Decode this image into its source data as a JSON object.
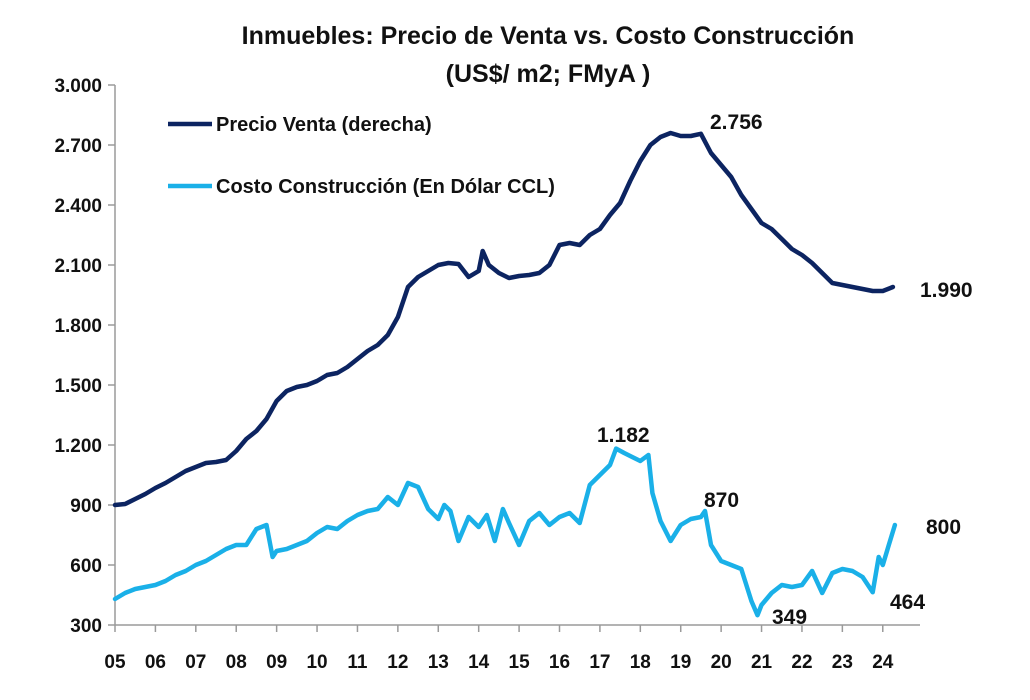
{
  "chart_data": {
    "type": "line",
    "title": "Inmuebles: Precio de Venta vs. Costo Construcción",
    "subtitle": "(US$/ m2; FMyA )",
    "xlabel": "",
    "ylabel": "",
    "ylim": [
      300,
      3000
    ],
    "yticks": [
      {
        "value": 300,
        "label": "300"
      },
      {
        "value": 600,
        "label": "600"
      },
      {
        "value": 900,
        "label": "900"
      },
      {
        "value": 1200,
        "label": "1.200"
      },
      {
        "value": 1500,
        "label": "1.500"
      },
      {
        "value": 1800,
        "label": "1.800"
      },
      {
        "value": 2100,
        "label": "2.100"
      },
      {
        "value": 2400,
        "label": "2.400"
      },
      {
        "value": 2700,
        "label": "2.700"
      },
      {
        "value": 3000,
        "label": "3.000"
      }
    ],
    "xlim": [
      2005,
      2024.55
    ],
    "xticks": [
      {
        "value": 2005,
        "label": "05"
      },
      {
        "value": 2006,
        "label": "06"
      },
      {
        "value": 2007,
        "label": "07"
      },
      {
        "value": 2008,
        "label": "08"
      },
      {
        "value": 2009,
        "label": "09"
      },
      {
        "value": 2010,
        "label": "10"
      },
      {
        "value": 2011,
        "label": "11"
      },
      {
        "value": 2012,
        "label": "12"
      },
      {
        "value": 2013,
        "label": "13"
      },
      {
        "value": 2014,
        "label": "14"
      },
      {
        "value": 2015,
        "label": "15"
      },
      {
        "value": 2016,
        "label": "16"
      },
      {
        "value": 2017,
        "label": "17"
      },
      {
        "value": 2018,
        "label": "18"
      },
      {
        "value": 2019,
        "label": "19"
      },
      {
        "value": 2020,
        "label": "20"
      },
      {
        "value": 2021,
        "label": "21"
      },
      {
        "value": 2022,
        "label": "22"
      },
      {
        "value": 2023,
        "label": "23"
      },
      {
        "value": 2024,
        "label": "24"
      }
    ],
    "grid": false,
    "legend_position": "top-left",
    "series": [
      {
        "name": "Precio Venta (derecha)",
        "color": "#0c2461",
        "points": [
          [
            2005.0,
            900
          ],
          [
            2005.25,
            905
          ],
          [
            2005.5,
            930
          ],
          [
            2005.75,
            955
          ],
          [
            2006.0,
            985
          ],
          [
            2006.25,
            1010
          ],
          [
            2006.5,
            1040
          ],
          [
            2006.75,
            1070
          ],
          [
            2007.0,
            1090
          ],
          [
            2007.25,
            1110
          ],
          [
            2007.5,
            1115
          ],
          [
            2007.75,
            1125
          ],
          [
            2008.0,
            1170
          ],
          [
            2008.25,
            1230
          ],
          [
            2008.5,
            1270
          ],
          [
            2008.75,
            1330
          ],
          [
            2009.0,
            1420
          ],
          [
            2009.25,
            1470
          ],
          [
            2009.5,
            1490
          ],
          [
            2009.75,
            1500
          ],
          [
            2010.0,
            1520
          ],
          [
            2010.25,
            1550
          ],
          [
            2010.5,
            1560
          ],
          [
            2010.75,
            1590
          ],
          [
            2011.0,
            1630
          ],
          [
            2011.25,
            1670
          ],
          [
            2011.5,
            1700
          ],
          [
            2011.75,
            1750
          ],
          [
            2012.0,
            1840
          ],
          [
            2012.25,
            1990
          ],
          [
            2012.5,
            2040
          ],
          [
            2012.75,
            2070
          ],
          [
            2013.0,
            2100
          ],
          [
            2013.25,
            2110
          ],
          [
            2013.5,
            2105
          ],
          [
            2013.75,
            2040
          ],
          [
            2014.0,
            2070
          ],
          [
            2014.1,
            2170
          ],
          [
            2014.25,
            2100
          ],
          [
            2014.5,
            2060
          ],
          [
            2014.75,
            2035
          ],
          [
            2015.0,
            2045
          ],
          [
            2015.25,
            2050
          ],
          [
            2015.5,
            2060
          ],
          [
            2015.75,
            2100
          ],
          [
            2016.0,
            2200
          ],
          [
            2016.25,
            2210
          ],
          [
            2016.5,
            2200
          ],
          [
            2016.75,
            2250
          ],
          [
            2017.0,
            2280
          ],
          [
            2017.25,
            2350
          ],
          [
            2017.5,
            2410
          ],
          [
            2017.75,
            2520
          ],
          [
            2018.0,
            2620
          ],
          [
            2018.25,
            2700
          ],
          [
            2018.5,
            2740
          ],
          [
            2018.75,
            2760
          ],
          [
            2019.0,
            2745
          ],
          [
            2019.25,
            2745
          ],
          [
            2019.5,
            2756
          ],
          [
            2019.75,
            2660
          ],
          [
            2020.0,
            2600
          ],
          [
            2020.25,
            2540
          ],
          [
            2020.5,
            2450
          ],
          [
            2020.75,
            2380
          ],
          [
            2021.0,
            2310
          ],
          [
            2021.25,
            2280
          ],
          [
            2021.5,
            2230
          ],
          [
            2021.75,
            2180
          ],
          [
            2022.0,
            2150
          ],
          [
            2022.25,
            2110
          ],
          [
            2022.5,
            2060
          ],
          [
            2022.75,
            2010
          ],
          [
            2023.0,
            2000
          ],
          [
            2023.25,
            1990
          ],
          [
            2023.5,
            1980
          ],
          [
            2023.75,
            1970
          ],
          [
            2024.0,
            1970
          ],
          [
            2024.25,
            1990
          ]
        ]
      },
      {
        "name": "Costo Construcción (En Dólar CCL)",
        "color": "#1ab0e8",
        "points": [
          [
            2005.0,
            430
          ],
          [
            2005.25,
            460
          ],
          [
            2005.5,
            480
          ],
          [
            2005.75,
            490
          ],
          [
            2006.0,
            500
          ],
          [
            2006.25,
            520
          ],
          [
            2006.5,
            550
          ],
          [
            2006.75,
            570
          ],
          [
            2007.0,
            600
          ],
          [
            2007.25,
            620
          ],
          [
            2007.5,
            650
          ],
          [
            2007.75,
            680
          ],
          [
            2008.0,
            700
          ],
          [
            2008.25,
            700
          ],
          [
            2008.5,
            780
          ],
          [
            2008.75,
            800
          ],
          [
            2008.9,
            640
          ],
          [
            2009.0,
            670
          ],
          [
            2009.25,
            680
          ],
          [
            2009.5,
            700
          ],
          [
            2009.75,
            720
          ],
          [
            2010.0,
            760
          ],
          [
            2010.25,
            790
          ],
          [
            2010.5,
            780
          ],
          [
            2010.75,
            820
          ],
          [
            2011.0,
            850
          ],
          [
            2011.25,
            870
          ],
          [
            2011.5,
            880
          ],
          [
            2011.75,
            940
          ],
          [
            2012.0,
            900
          ],
          [
            2012.25,
            1010
          ],
          [
            2012.5,
            990
          ],
          [
            2012.75,
            880
          ],
          [
            2013.0,
            830
          ],
          [
            2013.15,
            900
          ],
          [
            2013.3,
            870
          ],
          [
            2013.5,
            720
          ],
          [
            2013.75,
            840
          ],
          [
            2014.0,
            790
          ],
          [
            2014.2,
            850
          ],
          [
            2014.4,
            720
          ],
          [
            2014.6,
            880
          ],
          [
            2014.75,
            810
          ],
          [
            2015.0,
            700
          ],
          [
            2015.25,
            820
          ],
          [
            2015.5,
            860
          ],
          [
            2015.75,
            800
          ],
          [
            2016.0,
            840
          ],
          [
            2016.25,
            860
          ],
          [
            2016.5,
            810
          ],
          [
            2016.75,
            1000
          ],
          [
            2017.0,
            1050
          ],
          [
            2017.25,
            1100
          ],
          [
            2017.4,
            1182
          ],
          [
            2017.6,
            1160
          ],
          [
            2017.8,
            1140
          ],
          [
            2018.0,
            1120
          ],
          [
            2018.2,
            1150
          ],
          [
            2018.3,
            960
          ],
          [
            2018.5,
            820
          ],
          [
            2018.75,
            720
          ],
          [
            2019.0,
            800
          ],
          [
            2019.25,
            830
          ],
          [
            2019.5,
            840
          ],
          [
            2019.6,
            870
          ],
          [
            2019.75,
            700
          ],
          [
            2020.0,
            620
          ],
          [
            2020.25,
            600
          ],
          [
            2020.5,
            580
          ],
          [
            2020.75,
            420
          ],
          [
            2020.9,
            349
          ],
          [
            2021.0,
            400
          ],
          [
            2021.25,
            460
          ],
          [
            2021.5,
            500
          ],
          [
            2021.75,
            490
          ],
          [
            2022.0,
            500
          ],
          [
            2022.25,
            570
          ],
          [
            2022.5,
            460
          ],
          [
            2022.75,
            560
          ],
          [
            2023.0,
            580
          ],
          [
            2023.25,
            570
          ],
          [
            2023.5,
            540
          ],
          [
            2023.75,
            464
          ],
          [
            2023.9,
            640
          ],
          [
            2024.0,
            600
          ],
          [
            2024.15,
            700
          ],
          [
            2024.3,
            800
          ]
        ]
      }
    ],
    "annotations": [
      {
        "text": "2.756",
        "series": "Precio Venta (derecha)",
        "x": 2019.5,
        "y": 2756
      },
      {
        "text": "1.990",
        "series": "Precio Venta (derecha)",
        "x": 2024.25,
        "y": 1990
      },
      {
        "text": "1.182",
        "series": "Costo Construcción (En Dólar CCL)",
        "x": 2017.4,
        "y": 1182
      },
      {
        "text": "870",
        "series": "Costo Construcción (En Dólar CCL)",
        "x": 2019.6,
        "y": 870
      },
      {
        "text": "349",
        "series": "Costo Construcción (En Dólar CCL)",
        "x": 2020.9,
        "y": 349
      },
      {
        "text": "464",
        "series": "Costo Construcción (En Dólar CCL)",
        "x": 2023.75,
        "y": 464
      },
      {
        "text": "800",
        "series": "Costo Construcción (En Dólar CCL)",
        "x": 2024.3,
        "y": 800
      }
    ]
  }
}
